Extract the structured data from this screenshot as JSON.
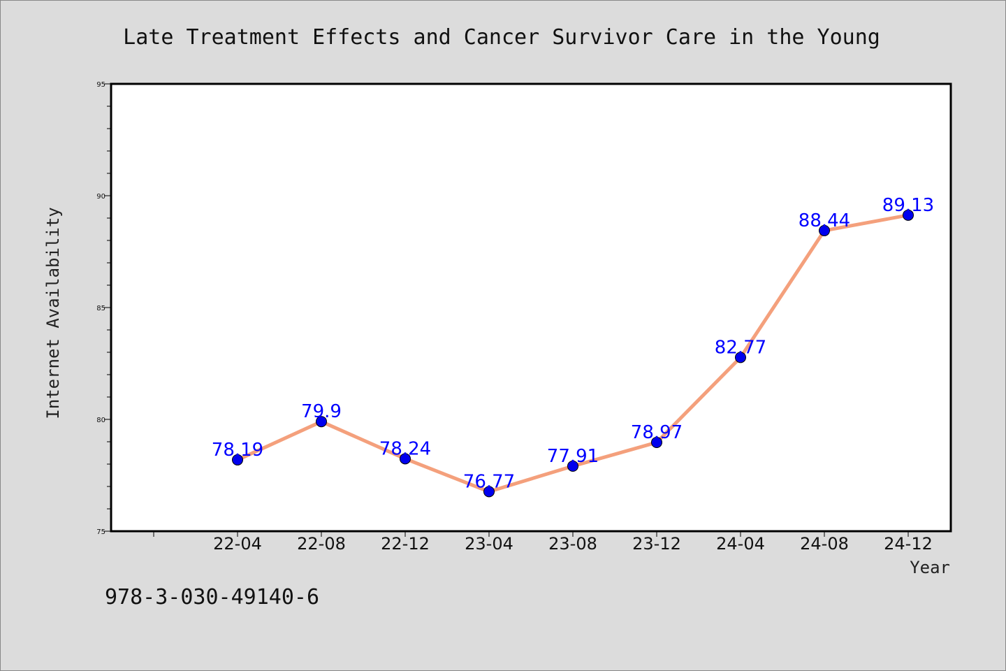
{
  "chart_data": {
    "type": "line",
    "title": "Late Treatment Effects and Cancer Survivor Care in the Young",
    "xlabel": "Year",
    "ylabel": "Internet Availability",
    "categories": [
      "22-04",
      "22-08",
      "22-12",
      "23-04",
      "23-08",
      "23-12",
      "24-04",
      "24-08",
      "24-12"
    ],
    "series": [
      {
        "values": [
          78.19,
          79.9,
          78.24,
          76.77,
          77.91,
          78.97,
          82.77,
          88.44,
          89.13
        ],
        "labels": [
          "78.19",
          "79.9",
          "78.24",
          "76.77",
          "77.91",
          "78.97",
          "82.77",
          "88.44",
          "89.13"
        ]
      }
    ],
    "ylim": [
      75,
      95
    ],
    "yticks": [
      "75",
      "80",
      "85",
      "90",
      "95"
    ],
    "grid": false,
    "legend": "none"
  },
  "footer": {
    "isbn": "978-3-030-49140-6"
  },
  "colors": {
    "background": "#dcdcdc",
    "plot_background": "#ffffff",
    "line": "#f4a07c",
    "marker": "#0000ee",
    "label": "#0000ff",
    "axis": "#000000"
  }
}
